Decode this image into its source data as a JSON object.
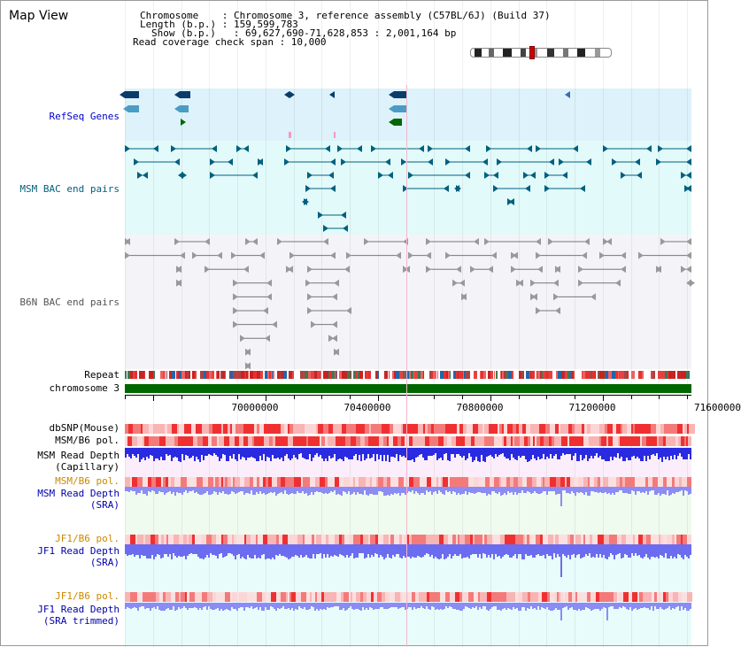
{
  "title": "Map View",
  "info": {
    "line1": "Chromosome    : Chromosome 3, reference assembly (C57BL/6J) (Build 37)",
    "line2": "Length (b.p.) : 159,599,783",
    "line3": "Show (b.p.)   : 69,627,690-71,628,853 : 2,001,164 bp",
    "line4": "Read coverage check span : 10,000"
  },
  "tracks": {
    "refseq": "RefSeq Genes",
    "msm_bac": "MSM BAC end pairs",
    "b6n_bac": "B6N BAC end pairs",
    "repeat": "Repeat",
    "chromosome": "chromosome 3",
    "dbsnp": "dbSNP(Mouse)",
    "msm_b6_pol": "MSM/B6 pol.",
    "msm_depth_cap_1": "MSM Read Depth",
    "msm_depth_cap_2": "(Capillary)",
    "msm_b6_pol_2": "MSM/B6 pol.",
    "msm_depth_sra_1": "MSM Read Depth",
    "msm_depth_sra_2": "(SRA)",
    "jf1_b6_pol": "JF1/B6 pol.",
    "jf1_depth_sra_1": "JF1 Read Depth",
    "jf1_depth_sra_2": "(SRA)",
    "jf1_b6_pol_2": "JF1/B6 pol.",
    "jf1_depth_trim_1": "JF1 Read Depth",
    "jf1_depth_trim_2": "(SRA trimmed)"
  },
  "axis": {
    "ticks": [
      "70000000",
      "70400000",
      "70800000",
      "71200000",
      "71600000"
    ]
  },
  "colors": {
    "refseq_label": "#0000cc",
    "msm_bac_label": "#006080",
    "b6n_bac_label": "#555555",
    "orange_label": "#cc8800",
    "blue_label": "#0000aa",
    "chromosome_bar": "#006600",
    "refseq_bg": "#ddf2fa",
    "msm_bac_bg": "#e2fafa",
    "b6n_bac_bg": "#f2f2f8",
    "depth_cap_bg": "#fbeefa",
    "depth_sra_bg": "#eefbee",
    "depth_jf1_bg": "#e8fcfc"
  }
}
